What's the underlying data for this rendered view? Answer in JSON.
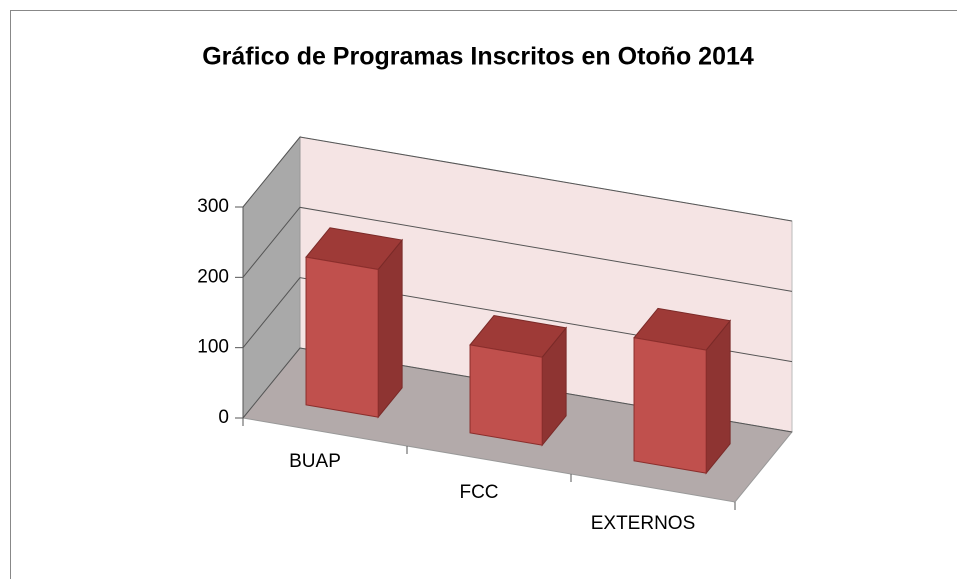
{
  "chart_data": {
    "type": "bar3d",
    "title": "Gráfico de Programas Inscritos en Otoño 2014",
    "categories": [
      "BUAP",
      "FCC",
      "EXTERNOS"
    ],
    "values": [
      210,
      125,
      175
    ],
    "color": "#c0504d",
    "ylim": [
      0,
      300
    ],
    "yticks": [
      0,
      100,
      200,
      300
    ],
    "grid": true
  }
}
